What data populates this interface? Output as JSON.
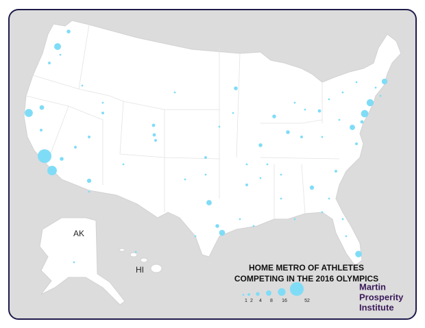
{
  "map": {
    "title_lines": [
      "HOME METRO OF ATHLETES",
      "COMPETING IN THE 2016 OLYMPICS"
    ],
    "region_labels": {
      "alaska": "AK",
      "hawaii": "HI"
    },
    "legend": {
      "values": [
        1,
        2,
        4,
        8,
        16,
        52
      ]
    },
    "metros": {
      "sizes": [
        52,
        25,
        18,
        13,
        4,
        2,
        6,
        4,
        5,
        3,
        3,
        2,
        8,
        12,
        4,
        10,
        5,
        14,
        15,
        9,
        8,
        4,
        4,
        4,
        4,
        3,
        3,
        2,
        2,
        2,
        2,
        2,
        2,
        2,
        2,
        2,
        1,
        1,
        1,
        1,
        1,
        1,
        1,
        1,
        1,
        1,
        1,
        1,
        1,
        1,
        1,
        1,
        1,
        1,
        1,
        1,
        1,
        1,
        1,
        1,
        1,
        1,
        1,
        1,
        1,
        1,
        1,
        1,
        1,
        1
      ]
    },
    "credit_lines": [
      "Martin",
      "Prosperity",
      "Institute"
    ]
  }
}
